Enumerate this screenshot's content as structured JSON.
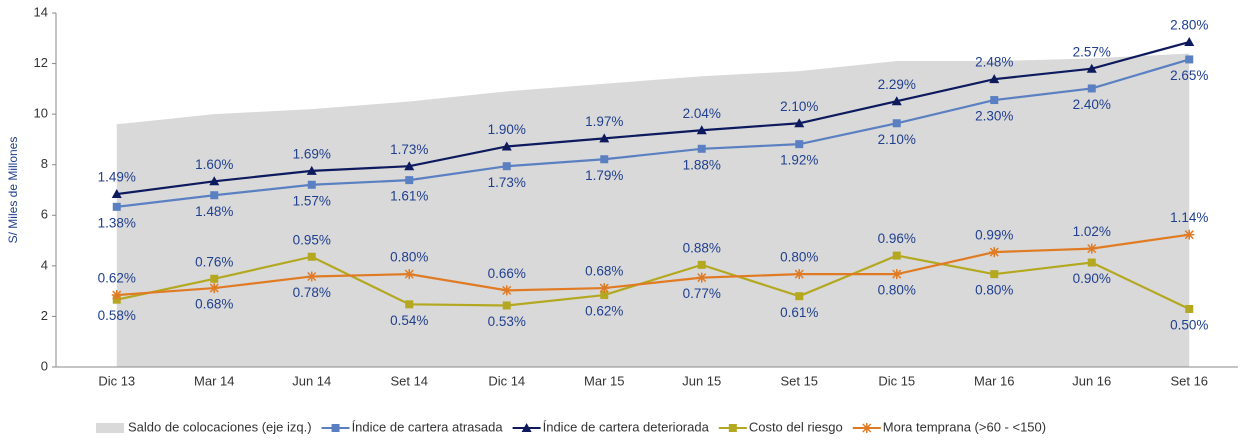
{
  "chart_data": {
    "type": "line",
    "y_label": "S/ Miles de Millones",
    "categories": [
      "Dic 13",
      "Mar 14",
      "Jun 14",
      "Set 14",
      "Dic 14",
      "Mar 15",
      "Jun 15",
      "Set 15",
      "Dic 15",
      "Mar 16",
      "Jun 16",
      "Set 16"
    ],
    "ylim": [
      0,
      14
    ],
    "yticks": [
      0,
      2,
      4,
      6,
      8,
      10,
      12,
      14
    ],
    "y2lim": [
      0,
      3.05
    ],
    "series": [
      {
        "name": "Saldo de colocaciones (eje izq.)",
        "kind": "area",
        "color": "#d9d9d9",
        "values": [
          9.6,
          10.0,
          10.2,
          10.5,
          10.9,
          11.2,
          11.5,
          11.7,
          12.1,
          12.1,
          12.2,
          12.4
        ]
      },
      {
        "name": "Índice de cartera atrasada",
        "color": "#5b80c2",
        "marker": "square",
        "axis": "y2",
        "values": [
          1.38,
          1.48,
          1.57,
          1.61,
          1.73,
          1.79,
          1.88,
          1.92,
          2.1,
          2.3,
          2.4,
          2.65
        ],
        "value_labels": [
          "1.38%",
          "1.48%",
          "1.57%",
          "1.61%",
          "1.73%",
          "1.79%",
          "1.88%",
          "1.92%",
          "2.10%",
          "2.30%",
          "2.40%",
          "2.65%"
        ]
      },
      {
        "name": "Índice de cartera deteriorada",
        "color": "#0d1a5e",
        "marker": "triangle",
        "axis": "y2",
        "values": [
          1.49,
          1.6,
          1.69,
          1.73,
          1.9,
          1.97,
          2.04,
          2.1,
          2.29,
          2.48,
          2.57,
          2.8
        ],
        "value_labels": [
          "1.49%",
          "1.60%",
          "1.69%",
          "1.73%",
          "1.90%",
          "1.97%",
          "2.04%",
          "2.10%",
          "2.29%",
          "2.48%",
          "2.57%",
          "2.80%"
        ]
      },
      {
        "name": "Costo del riesgo",
        "color": "#b3a820",
        "marker": "square",
        "axis": "y2",
        "values": [
          0.58,
          0.76,
          0.95,
          0.54,
          0.53,
          0.62,
          0.88,
          0.61,
          0.96,
          0.8,
          0.9,
          0.5
        ],
        "value_labels": [
          "0.58%",
          "0.76%",
          "0.95%",
          "0.54%",
          "0.53%",
          "0.62%",
          "0.88%",
          "0.61%",
          "0.96%",
          "0.80%",
          "0.90%",
          "0.50%"
        ]
      },
      {
        "name": "Mora temprana (>60 - <150)",
        "color": "#e07b24",
        "marker": "star",
        "axis": "y2",
        "values": [
          0.62,
          0.68,
          0.78,
          0.8,
          0.66,
          0.68,
          0.77,
          0.8,
          0.8,
          0.99,
          1.02,
          1.14
        ],
        "value_labels": [
          "0.62%",
          "0.68%",
          "0.78%",
          "0.80%",
          "0.66%",
          "0.68%",
          "0.77%",
          "0.80%",
          "0.80%",
          "0.99%",
          "1.02%",
          "1.14%"
        ]
      }
    ]
  }
}
